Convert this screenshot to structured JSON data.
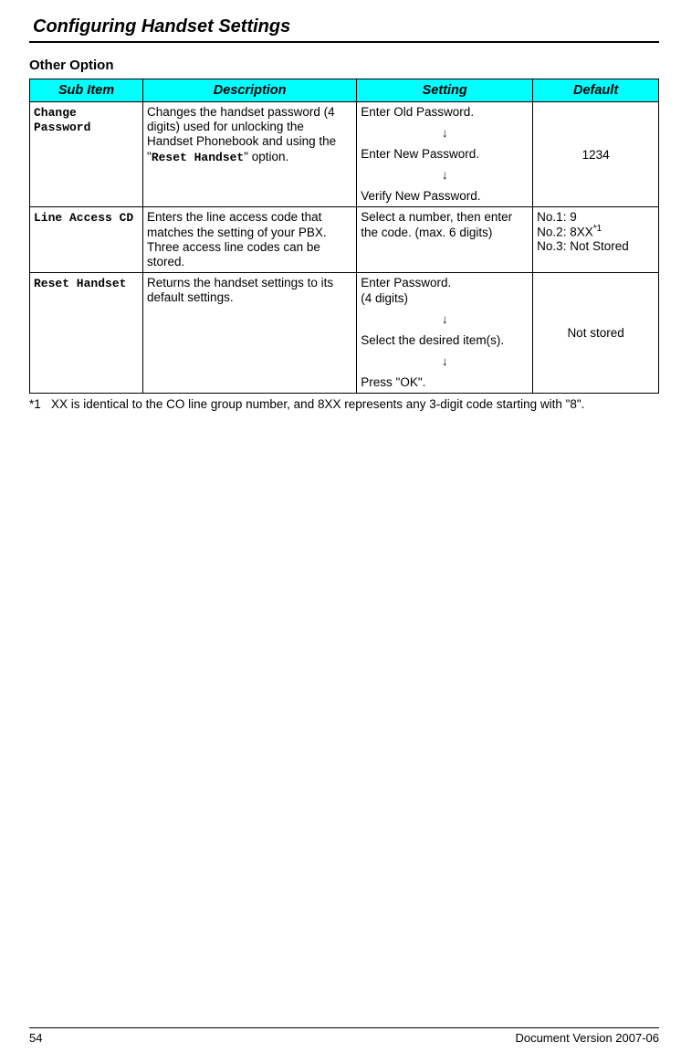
{
  "page": {
    "title": "Configuring Handset Settings",
    "subheading": "Other Option"
  },
  "table": {
    "headers": {
      "sub_item": "Sub Item",
      "description": "Description",
      "setting": "Setting",
      "default": "Default"
    },
    "rows": [
      {
        "sub_item": "Change Password",
        "description_pre": "Changes the handset password (4 digits) used for unlocking the Handset Phonebook and using the \"",
        "description_mono": "Reset Handset",
        "description_post": "\" option.",
        "setting_steps": [
          "Enter Old Password.",
          "↓",
          "Enter New Password.",
          "↓",
          "Verify New Password."
        ],
        "default": "1234"
      },
      {
        "sub_item": "Line Access CD",
        "description": "Enters the line access code that matches the setting of your PBX. Three access line codes can be stored.",
        "setting": "Select a number, then enter the code. (max. 6 digits)",
        "default_lines": [
          "No.1: 9",
          "No.2: 8XX",
          "No.3: Not Stored"
        ],
        "default_sup": "*1"
      },
      {
        "sub_item": "Reset Handset",
        "description": "Returns the handset settings to its default settings.",
        "setting_steps": [
          "Enter Password.\n(4 digits)",
          "↓",
          "Select the desired item(s).",
          "↓",
          "Press \"OK\"."
        ],
        "default": "Not stored"
      }
    ]
  },
  "footnote": {
    "marker": "*1",
    "text": "XX is identical to the CO line group number, and 8XX represents any 3-digit code starting with \"8\"."
  },
  "footer": {
    "page_number": "54",
    "doc_version": "Document Version 2007-06"
  }
}
